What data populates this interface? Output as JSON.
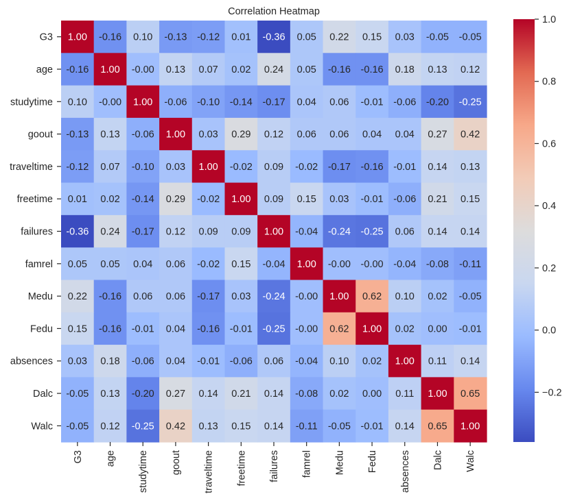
{
  "chart_data": {
    "type": "heatmap",
    "title": "Correlation Heatmap",
    "xlabel": "",
    "ylabel": "",
    "colormap": "coolwarm",
    "colormap_stops": [
      "#3b4cc0",
      "#6788ee",
      "#9abbff",
      "#c9d7f0",
      "#dddcdc",
      "#f2cbb7",
      "#f7a889",
      "#e26952",
      "#b40426"
    ],
    "value_range": [
      -0.36,
      1.0
    ],
    "labels": [
      "G3",
      "age",
      "studytime",
      "goout",
      "traveltime",
      "freetime",
      "failures",
      "famrel",
      "Medu",
      "Fedu",
      "absences",
      "Dalc",
      "Walc"
    ],
    "matrix": [
      [
        "1.00",
        "-0.16",
        "0.10",
        "-0.13",
        "-0.12",
        "0.01",
        "-0.36",
        "0.05",
        "0.22",
        "0.15",
        "0.03",
        "-0.05",
        "-0.05"
      ],
      [
        "-0.16",
        "1.00",
        "-0.00",
        "0.13",
        "0.07",
        "0.02",
        "0.24",
        "0.05",
        "-0.16",
        "-0.16",
        "0.18",
        "0.13",
        "0.12"
      ],
      [
        "0.10",
        "-0.00",
        "1.00",
        "-0.06",
        "-0.10",
        "-0.14",
        "-0.17",
        "0.04",
        "0.06",
        "-0.01",
        "-0.06",
        "-0.20",
        "-0.25"
      ],
      [
        "-0.13",
        "0.13",
        "-0.06",
        "1.00",
        "0.03",
        "0.29",
        "0.12",
        "0.06",
        "0.06",
        "0.04",
        "0.04",
        "0.27",
        "0.42"
      ],
      [
        "-0.12",
        "0.07",
        "-0.10",
        "0.03",
        "1.00",
        "-0.02",
        "0.09",
        "-0.02",
        "-0.17",
        "-0.16",
        "-0.01",
        "0.14",
        "0.13"
      ],
      [
        "0.01",
        "0.02",
        "-0.14",
        "0.29",
        "-0.02",
        "1.00",
        "0.09",
        "0.15",
        "0.03",
        "-0.01",
        "-0.06",
        "0.21",
        "0.15"
      ],
      [
        "-0.36",
        "0.24",
        "-0.17",
        "0.12",
        "0.09",
        "0.09",
        "1.00",
        "-0.04",
        "-0.24",
        "-0.25",
        "0.06",
        "0.14",
        "0.14"
      ],
      [
        "0.05",
        "0.05",
        "0.04",
        "0.06",
        "-0.02",
        "0.15",
        "-0.04",
        "1.00",
        "-0.00",
        "-0.00",
        "-0.04",
        "-0.08",
        "-0.11"
      ],
      [
        "0.22",
        "-0.16",
        "0.06",
        "0.06",
        "-0.17",
        "0.03",
        "-0.24",
        "-0.00",
        "1.00",
        "0.62",
        "0.10",
        "0.02",
        "-0.05"
      ],
      [
        "0.15",
        "-0.16",
        "-0.01",
        "0.04",
        "-0.16",
        "-0.01",
        "-0.25",
        "-0.00",
        "0.62",
        "1.00",
        "0.02",
        "0.00",
        "-0.01"
      ],
      [
        "0.03",
        "0.18",
        "-0.06",
        "0.04",
        "-0.01",
        "-0.06",
        "0.06",
        "-0.04",
        "0.10",
        "0.02",
        "1.00",
        "0.11",
        "0.14"
      ],
      [
        "-0.05",
        "0.13",
        "-0.20",
        "0.27",
        "0.14",
        "0.21",
        "0.14",
        "-0.08",
        "0.02",
        "0.00",
        "0.11",
        "1.00",
        "0.65"
      ],
      [
        "-0.05",
        "0.12",
        "-0.25",
        "0.42",
        "0.13",
        "0.15",
        "0.14",
        "-0.11",
        "-0.05",
        "-0.01",
        "0.14",
        "0.65",
        "1.00"
      ]
    ],
    "colorbar": {
      "ticks": [
        1.0,
        0.8,
        0.6,
        0.4,
        0.2,
        0.0,
        -0.2
      ],
      "tick_labels": [
        "1.0",
        "0.8",
        "0.6",
        "0.4",
        "0.2",
        "0.0",
        "−0.2"
      ]
    },
    "annotations": true,
    "grid": false,
    "legend": "colorbar-right"
  }
}
